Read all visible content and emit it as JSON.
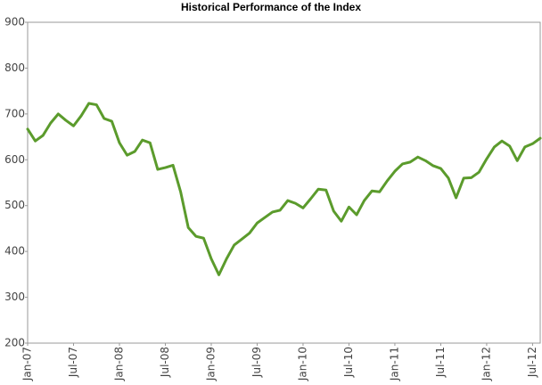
{
  "chart_data": {
    "type": "line",
    "title": "Historical Performance of the Index",
    "categories": [
      "Jan-07",
      null,
      null,
      null,
      null,
      null,
      "Jul-07",
      null,
      null,
      null,
      null,
      null,
      "Jan-08",
      null,
      null,
      null,
      null,
      null,
      "Jul-08",
      null,
      null,
      null,
      null,
      null,
      "Jan-09",
      null,
      null,
      null,
      null,
      null,
      "Jul-09",
      null,
      null,
      null,
      null,
      null,
      "Jan-10",
      null,
      null,
      null,
      null,
      null,
      "Jul-10",
      null,
      null,
      null,
      null,
      null,
      "Jan-11",
      null,
      null,
      null,
      null,
      null,
      "Jul-11",
      null,
      null,
      null,
      null,
      null,
      "Jan-12",
      null,
      null,
      null,
      null,
      null,
      "Jul-12",
      null
    ],
    "values": [
      667,
      641,
      653,
      680,
      700,
      686,
      674,
      696,
      723,
      720,
      690,
      684,
      637,
      610,
      618,
      643,
      637,
      579,
      583,
      588,
      530,
      452,
      433,
      429,
      384,
      349,
      384,
      414,
      427,
      440,
      462,
      474,
      486,
      490,
      511,
      505,
      495,
      515,
      536,
      534,
      488,
      466,
      497,
      480,
      511,
      532,
      530,
      554,
      575,
      591,
      595,
      606,
      598,
      587,
      581,
      560,
      517,
      560,
      561,
      573,
      602,
      628,
      641,
      630,
      598,
      628,
      635,
      647
    ],
    "color": "#5b9b2c",
    "ylim": [
      200,
      900
    ],
    "yticks": [
      200,
      300,
      400,
      500,
      600,
      700,
      800,
      900
    ],
    "grid": false
  }
}
